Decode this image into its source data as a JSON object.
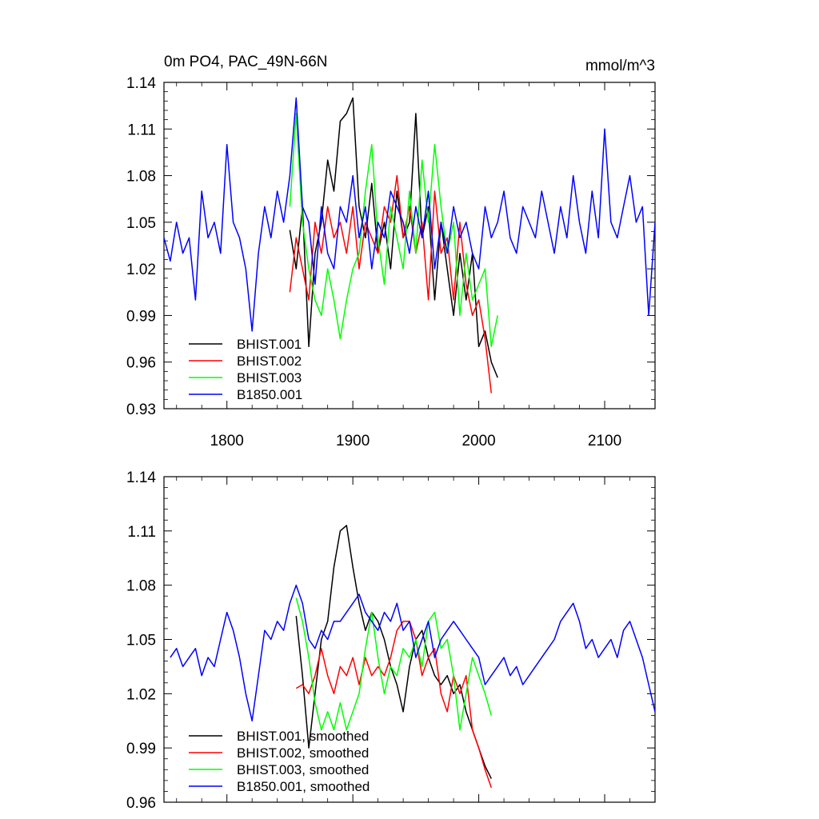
{
  "chart_data": [
    {
      "type": "line",
      "title": "0m PO4, PAC_49N-66N",
      "units": "mmol/m^3",
      "xlabel": "",
      "ylabel": "",
      "xlim": [
        1750,
        2140
      ],
      "ylim": [
        0.93,
        1.14
      ],
      "xticks": [
        1800,
        1900,
        2000,
        2100
      ],
      "xtick_labels": [
        "1800",
        "1900",
        "2000",
        "2100"
      ],
      "yticks": [
        0.93,
        0.96,
        0.99,
        1.02,
        1.05,
        1.08,
        1.11,
        1.14
      ],
      "ytick_labels": [
        "0.93",
        "0.96",
        "0.99",
        "1.02",
        "1.05",
        "1.08",
        "1.11",
        "1.14"
      ],
      "grid": false,
      "legend": "bottom-left",
      "series": [
        {
          "name": "BHIST.001",
          "color": "#000000",
          "x": [
            1850,
            1855,
            1860,
            1865,
            1870,
            1875,
            1880,
            1885,
            1890,
            1895,
            1900,
            1905,
            1910,
            1915,
            1920,
            1925,
            1930,
            1935,
            1940,
            1945,
            1950,
            1955,
            1960,
            1965,
            1970,
            1975,
            1980,
            1985,
            1990,
            1995,
            2000,
            2005,
            2010,
            2015
          ],
          "y": [
            1.045,
            1.02,
            1.06,
            0.97,
            1.03,
            1.05,
            1.09,
            1.07,
            1.115,
            1.12,
            1.13,
            1.06,
            1.04,
            1.075,
            1.03,
            1.05,
            1.02,
            1.07,
            1.04,
            1.05,
            1.12,
            1.04,
            1.06,
            1.0,
            1.05,
            1.02,
            0.99,
            1.03,
            1.0,
            1.03,
            0.97,
            0.98,
            0.96,
            0.95
          ]
        },
        {
          "name": "BHIST.002",
          "color": "#ff0000",
          "x": [
            1850,
            1855,
            1860,
            1865,
            1870,
            1875,
            1880,
            1885,
            1890,
            1895,
            1900,
            1905,
            1910,
            1915,
            1920,
            1925,
            1930,
            1935,
            1940,
            1945,
            1950,
            1955,
            1960,
            1965,
            1970,
            1975,
            1980,
            1985,
            1990,
            1995,
            2000,
            2005,
            2010
          ],
          "y": [
            1.005,
            1.04,
            1.02,
            1.0,
            1.05,
            1.03,
            1.06,
            1.04,
            1.05,
            1.03,
            1.06,
            1.02,
            1.05,
            1.04,
            1.03,
            1.06,
            1.05,
            1.08,
            1.04,
            1.06,
            1.03,
            1.05,
            1.0,
            1.07,
            1.03,
            1.04,
            1.0,
            1.05,
            1.01,
            0.99,
            1.0,
            0.975,
            0.94
          ]
        },
        {
          "name": "BHIST.003",
          "color": "#00ff00",
          "x": [
            1850,
            1855,
            1860,
            1865,
            1870,
            1875,
            1880,
            1885,
            1890,
            1895,
            1900,
            1905,
            1910,
            1915,
            1920,
            1925,
            1930,
            1935,
            1940,
            1945,
            1950,
            1955,
            1960,
            1965,
            1970,
            1975,
            1980,
            1985,
            1990,
            1995,
            2000,
            2005,
            2010,
            2015
          ],
          "y": [
            1.06,
            1.12,
            1.05,
            1.02,
            1.0,
            0.99,
            1.02,
            1.0,
            0.975,
            1.0,
            1.02,
            1.03,
            1.07,
            1.1,
            1.04,
            1.01,
            1.06,
            1.04,
            1.02,
            1.07,
            1.03,
            1.09,
            1.05,
            1.1,
            1.06,
            1.03,
            1.05,
            0.99,
            1.03,
            1.0,
            1.01,
            1.02,
            0.97,
            0.99
          ]
        },
        {
          "name": "B1850.001",
          "color": "#0000ff",
          "x": [
            1750,
            1755,
            1760,
            1765,
            1770,
            1775,
            1780,
            1785,
            1790,
            1795,
            1800,
            1805,
            1810,
            1815,
            1820,
            1825,
            1830,
            1835,
            1840,
            1845,
            1850,
            1855,
            1860,
            1865,
            1870,
            1875,
            1880,
            1885,
            1890,
            1895,
            1900,
            1905,
            1910,
            1915,
            1920,
            1925,
            1930,
            1935,
            1940,
            1945,
            1950,
            1955,
            1960,
            1965,
            1970,
            1975,
            1980,
            1985,
            1990,
            1995,
            2000,
            2005,
            2010,
            2015,
            2020,
            2025,
            2030,
            2035,
            2040,
            2045,
            2050,
            2055,
            2060,
            2065,
            2070,
            2075,
            2080,
            2085,
            2090,
            2095,
            2100,
            2105,
            2110,
            2115,
            2120,
            2125,
            2130,
            2135,
            2140
          ],
          "y": [
            1.04,
            1.025,
            1.05,
            1.03,
            1.04,
            1.0,
            1.07,
            1.04,
            1.05,
            1.03,
            1.1,
            1.05,
            1.04,
            1.02,
            0.98,
            1.03,
            1.06,
            1.04,
            1.07,
            1.05,
            1.08,
            1.13,
            1.06,
            1.05,
            1.01,
            1.06,
            1.03,
            1.02,
            1.06,
            1.05,
            1.08,
            1.04,
            1.06,
            1.02,
            1.05,
            1.04,
            1.07,
            1.06,
            1.05,
            1.03,
            1.06,
            1.04,
            1.07,
            1.02,
            1.05,
            1.03,
            1.06,
            1.04,
            1.05,
            1.03,
            1.02,
            1.06,
            1.04,
            1.05,
            1.07,
            1.04,
            1.03,
            1.06,
            1.05,
            1.04,
            1.07,
            1.05,
            1.03,
            1.06,
            1.04,
            1.08,
            1.05,
            1.03,
            1.07,
            1.04,
            1.11,
            1.05,
            1.04,
            1.06,
            1.08,
            1.05,
            1.06,
            0.99,
            1.05
          ]
        }
      ]
    },
    {
      "type": "line",
      "title": "",
      "xlabel": "",
      "ylabel": "",
      "xlim": [
        1750,
        2140
      ],
      "ylim": [
        0.96,
        1.14
      ],
      "xticks": [
        1800,
        1900,
        2000,
        2100
      ],
      "yticks": [
        0.96,
        0.99,
        1.02,
        1.05,
        1.08,
        1.11,
        1.14
      ],
      "ytick_labels": [
        "0.96",
        "0.99",
        "1.02",
        "1.05",
        "1.08",
        "1.11",
        "1.14"
      ],
      "grid": false,
      "legend": "bottom-left",
      "series": [
        {
          "name": "BHIST.001, smoothed",
          "color": "#000000",
          "x": [
            1855,
            1860,
            1865,
            1870,
            1875,
            1880,
            1885,
            1890,
            1895,
            1900,
            1905,
            1910,
            1915,
            1920,
            1925,
            1930,
            1935,
            1940,
            1945,
            1950,
            1955,
            1960,
            1965,
            1970,
            1975,
            1980,
            1985,
            1990,
            1995,
            2000,
            2005,
            2010
          ],
          "y": [
            1.063,
            1.03,
            0.99,
            1.02,
            1.05,
            1.06,
            1.09,
            1.11,
            1.113,
            1.09,
            1.07,
            1.055,
            1.065,
            1.06,
            1.05,
            1.035,
            1.025,
            1.01,
            1.035,
            1.05,
            1.055,
            1.04,
            1.03,
            1.025,
            1.03,
            1.02,
            1.025,
            1.01,
            1.0,
            0.99,
            0.98,
            0.973
          ]
        },
        {
          "name": "BHIST.002, smoothed",
          "color": "#ff0000",
          "x": [
            1855,
            1860,
            1865,
            1870,
            1875,
            1880,
            1885,
            1890,
            1895,
            1900,
            1905,
            1910,
            1915,
            1920,
            1925,
            1930,
            1935,
            1940,
            1945,
            1950,
            1955,
            1960,
            1965,
            1970,
            1975,
            1980,
            1985,
            1990,
            1995,
            2000,
            2005,
            2010
          ],
          "y": [
            1.023,
            1.025,
            1.02,
            1.03,
            1.045,
            1.03,
            1.02,
            1.035,
            1.03,
            1.04,
            1.025,
            1.04,
            1.03,
            1.035,
            1.03,
            1.04,
            1.055,
            1.06,
            1.06,
            1.05,
            1.03,
            1.04,
            1.045,
            1.02,
            1.01,
            1.03,
            1.02,
            1.03,
            1.0,
            0.99,
            0.978,
            0.968
          ]
        },
        {
          "name": "BHIST.003, smoothed",
          "color": "#00ff00",
          "x": [
            1855,
            1860,
            1865,
            1870,
            1875,
            1880,
            1885,
            1890,
            1895,
            1900,
            1905,
            1910,
            1915,
            1920,
            1925,
            1930,
            1935,
            1940,
            1945,
            1950,
            1955,
            1960,
            1965,
            1970,
            1975,
            1980,
            1985,
            1990,
            1995,
            2000,
            2005,
            2010
          ],
          "y": [
            1.073,
            1.06,
            1.04,
            1.015,
            1.0,
            1.01,
            1.0,
            1.015,
            1.0,
            1.01,
            1.02,
            1.045,
            1.065,
            1.04,
            1.02,
            1.035,
            1.03,
            1.045,
            1.04,
            1.05,
            1.035,
            1.06,
            1.065,
            1.045,
            1.05,
            1.03,
            1.0,
            1.02,
            1.04,
            1.03,
            1.02,
            1.008
          ]
        },
        {
          "name": "B1850.001, smoothed",
          "color": "#0000ff",
          "x": [
            1755,
            1760,
            1765,
            1770,
            1775,
            1780,
            1785,
            1790,
            1795,
            1800,
            1805,
            1810,
            1815,
            1820,
            1825,
            1830,
            1835,
            1840,
            1845,
            1850,
            1855,
            1860,
            1865,
            1870,
            1875,
            1880,
            1885,
            1890,
            1895,
            1900,
            1905,
            1910,
            1915,
            1920,
            1925,
            1930,
            1935,
            1940,
            1945,
            1950,
            1955,
            1960,
            1965,
            1970,
            1975,
            1980,
            1985,
            1990,
            1995,
            2000,
            2005,
            2010,
            2015,
            2020,
            2025,
            2030,
            2035,
            2040,
            2045,
            2050,
            2055,
            2060,
            2065,
            2070,
            2075,
            2080,
            2085,
            2090,
            2095,
            2100,
            2105,
            2110,
            2115,
            2120,
            2125,
            2130,
            2135,
            2140
          ],
          "y": [
            1.04,
            1.045,
            1.035,
            1.04,
            1.045,
            1.03,
            1.04,
            1.035,
            1.05,
            1.065,
            1.055,
            1.04,
            1.02,
            1.005,
            1.03,
            1.055,
            1.05,
            1.06,
            1.055,
            1.07,
            1.08,
            1.07,
            1.05,
            1.045,
            1.055,
            1.05,
            1.06,
            1.06,
            1.065,
            1.07,
            1.075,
            1.065,
            1.06,
            1.055,
            1.065,
            1.06,
            1.07,
            1.055,
            1.06,
            1.04,
            1.05,
            1.06,
            1.04,
            1.05,
            1.055,
            1.06,
            1.055,
            1.05,
            1.045,
            1.04,
            1.025,
            1.03,
            1.035,
            1.04,
            1.03,
            1.035,
            1.025,
            1.03,
            1.035,
            1.04,
            1.045,
            1.05,
            1.06,
            1.065,
            1.07,
            1.06,
            1.045,
            1.05,
            1.04,
            1.045,
            1.05,
            1.04,
            1.055,
            1.06,
            1.05,
            1.04,
            1.025,
            1.01
          ]
        }
      ]
    }
  ]
}
